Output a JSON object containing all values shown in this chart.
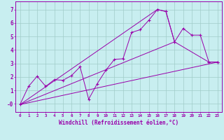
{
  "background_color": "#c8eef0",
  "grid_color": "#a0ccc8",
  "line_color": "#9900aa",
  "xlabel": "Windchill (Refroidissement éolien,°C)",
  "xlim": [
    -0.5,
    23.5
  ],
  "ylim": [
    -0.6,
    7.6
  ],
  "xticks": [
    0,
    1,
    2,
    3,
    4,
    5,
    6,
    7,
    8,
    9,
    10,
    11,
    12,
    13,
    14,
    15,
    16,
    17,
    18,
    19,
    20,
    21,
    22,
    23
  ],
  "yticks": [
    0,
    1,
    2,
    3,
    4,
    5,
    6,
    7
  ],
  "ytick_labels": [
    "-0",
    "1",
    "2",
    "3",
    "4",
    "5",
    "6",
    "7"
  ],
  "series": [
    {
      "x": [
        0,
        1,
        2,
        3,
        4,
        5,
        6,
        7,
        8,
        9,
        10,
        11,
        12,
        13,
        14,
        15,
        16,
        17,
        18,
        19,
        20,
        21,
        22,
        23
      ],
      "y": [
        -0.05,
        1.3,
        2.05,
        1.3,
        1.8,
        1.75,
        2.1,
        2.75,
        0.35,
        1.5,
        2.5,
        3.3,
        3.35,
        5.3,
        5.5,
        6.2,
        7.0,
        6.85,
        4.6,
        5.6,
        5.1,
        5.1,
        3.1,
        3.1
      ],
      "with_markers": true
    },
    {
      "x": [
        0,
        23
      ],
      "y": [
        -0.05,
        3.1
      ],
      "with_markers": false
    },
    {
      "x": [
        0,
        18
      ],
      "y": [
        -0.05,
        4.6
      ],
      "with_markers": false
    },
    {
      "x": [
        0,
        16
      ],
      "y": [
        -0.05,
        7.0
      ],
      "with_markers": false
    },
    {
      "x": [
        16,
        17,
        18,
        22,
        23
      ],
      "y": [
        7.0,
        6.85,
        4.6,
        3.1,
        3.1
      ],
      "with_markers": true
    }
  ]
}
